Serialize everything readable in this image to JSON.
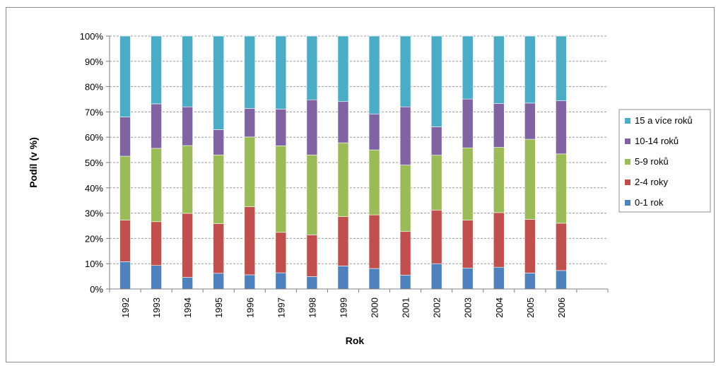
{
  "chart_data": {
    "type": "bar",
    "stacked": true,
    "percent_stacked": true,
    "xlabel": "Rok",
    "ylabel": "Podíl (v %)",
    "ylim": [
      0,
      100
    ],
    "yticks": [
      "0%",
      "10%",
      "20%",
      "30%",
      "40%",
      "50%",
      "60%",
      "70%",
      "80%",
      "90%",
      "100%"
    ],
    "grid": "horizontal dashed",
    "legend_position": "right",
    "categories": [
      "1992",
      "1993",
      "1994",
      "1995",
      "1996",
      "1997",
      "1998",
      "1999",
      "2000",
      "2001",
      "2002",
      "2003",
      "2004",
      "2005",
      "2006"
    ],
    "series": [
      {
        "name": "0-1 rok",
        "color": "#4f81bd",
        "values": [
          10.8,
          9.3,
          4.6,
          6.2,
          5.6,
          6.4,
          4.9,
          9.1,
          8.1,
          5.5,
          10.0,
          8.3,
          8.6,
          6.3,
          7.3
        ]
      },
      {
        "name": "2-4 roky",
        "color": "#c0504d",
        "values": [
          16.4,
          17.3,
          25.3,
          19.6,
          26.9,
          16.0,
          16.5,
          19.5,
          21.2,
          17.2,
          21.2,
          18.9,
          21.6,
          21.2,
          18.7
        ]
      },
      {
        "name": "5-9 roků",
        "color": "#9bbb59",
        "values": [
          25.3,
          29.0,
          26.8,
          27.2,
          27.6,
          34.2,
          31.6,
          29.2,
          25.7,
          26.3,
          21.7,
          28.6,
          25.8,
          31.7,
          27.4
        ]
      },
      {
        "name": "10-14 roků",
        "color": "#8064a2",
        "values": [
          15.5,
          17.6,
          15.3,
          10.0,
          11.3,
          14.5,
          21.8,
          16.3,
          14.2,
          23.0,
          11.2,
          19.3,
          17.3,
          14.3,
          21.0
        ]
      },
      {
        "name": "15 a více roků",
        "color": "#4bacc6",
        "values": [
          32.0,
          26.8,
          28.0,
          37.0,
          28.6,
          28.9,
          25.2,
          25.9,
          30.8,
          28.0,
          35.9,
          24.9,
          26.7,
          26.5,
          25.6
        ]
      }
    ]
  }
}
